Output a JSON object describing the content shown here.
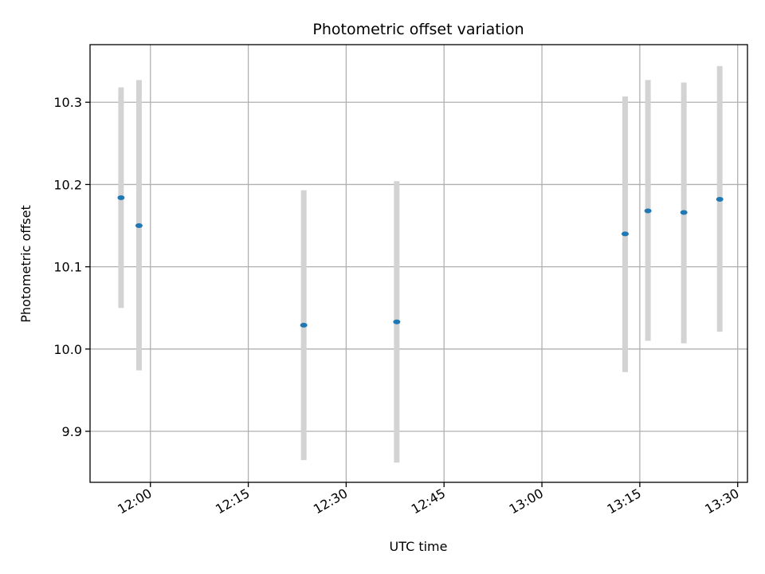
{
  "chart_data": {
    "type": "scatter",
    "title": "Photometric offset variation",
    "xlabel": "UTC time",
    "ylabel": "Photometric offset",
    "x_tick_labels": [
      "12:00",
      "12:15",
      "12:30",
      "12:45",
      "13:00",
      "13:15",
      "13:30"
    ],
    "y_tick_labels": [
      "9.9",
      "10.0",
      "10.1",
      "10.2",
      "10.3"
    ],
    "y_ticks": [
      9.9,
      10.0,
      10.1,
      10.2,
      10.3
    ],
    "xlim": [
      "11:50:45",
      "13:31:30"
    ],
    "ylim": [
      9.838,
      10.37
    ],
    "grid": true,
    "series": [
      {
        "marker_color": "#1f77b4",
        "errorbar_color": "#d3d3d3",
        "points": [
          {
            "t": "11:55:30",
            "y": 10.184,
            "ylow": 10.05,
            "yhigh": 10.318
          },
          {
            "t": "11:58:15",
            "y": 10.15,
            "ylow": 9.974,
            "yhigh": 10.327
          },
          {
            "t": "12:23:30",
            "y": 10.029,
            "ylow": 9.865,
            "yhigh": 10.193
          },
          {
            "t": "12:37:45",
            "y": 10.033,
            "ylow": 9.862,
            "yhigh": 10.204
          },
          {
            "t": "13:12:45",
            "y": 10.14,
            "ylow": 9.972,
            "yhigh": 10.307
          },
          {
            "t": "13:16:15",
            "y": 10.168,
            "ylow": 10.01,
            "yhigh": 10.327
          },
          {
            "t": "13:21:45",
            "y": 10.166,
            "ylow": 10.007,
            "yhigh": 10.324
          },
          {
            "t": "13:27:15",
            "y": 10.182,
            "ylow": 10.021,
            "yhigh": 10.344
          }
        ]
      }
    ]
  }
}
